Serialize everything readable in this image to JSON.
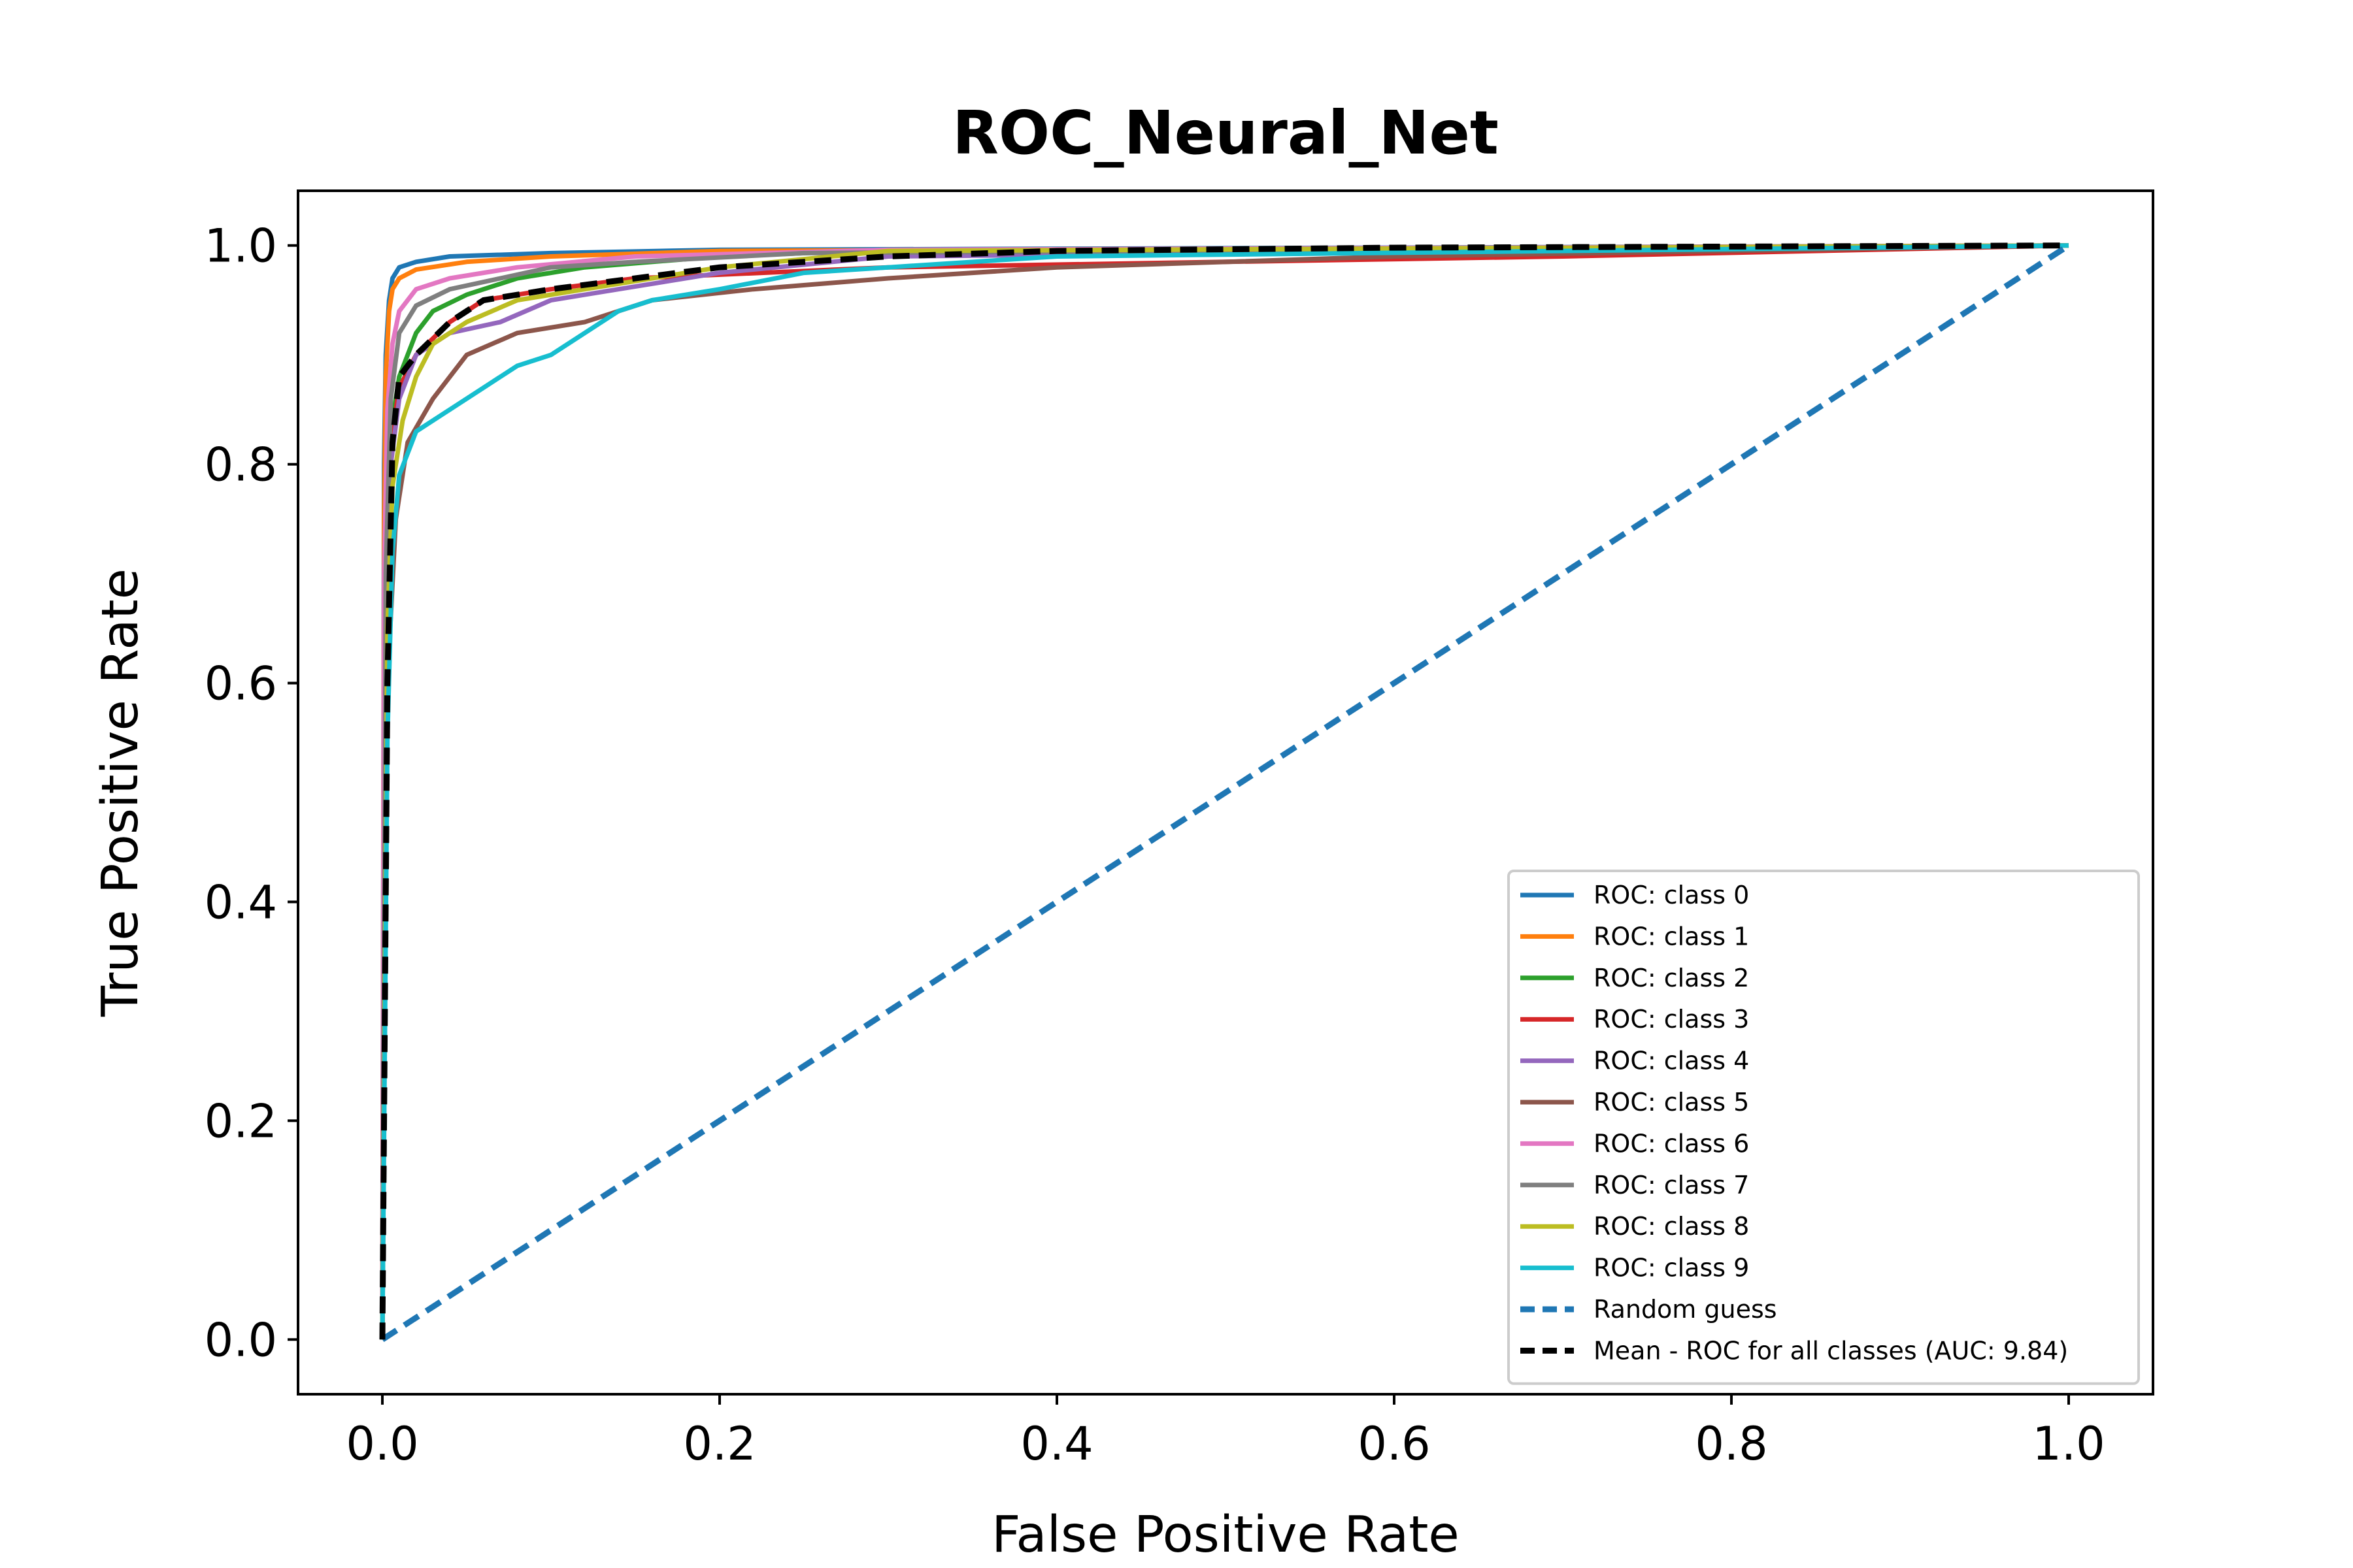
{
  "chart_data": {
    "type": "line",
    "title": "ROC_Neural_Net",
    "xlabel": "False Positive Rate",
    "ylabel": "True Positive Rate",
    "xlim": [
      -0.05,
      1.05
    ],
    "ylim": [
      -0.05,
      1.05
    ],
    "xticks": [
      {
        "value": 0.0,
        "label": "0.0"
      },
      {
        "value": 0.2,
        "label": "0.2"
      },
      {
        "value": 0.4,
        "label": "0.4"
      },
      {
        "value": 0.6,
        "label": "0.6"
      },
      {
        "value": 0.8,
        "label": "0.8"
      },
      {
        "value": 1.0,
        "label": "1.0"
      }
    ],
    "yticks": [
      {
        "value": 0.0,
        "label": "0.0"
      },
      {
        "value": 0.2,
        "label": "0.2"
      },
      {
        "value": 0.4,
        "label": "0.4"
      },
      {
        "value": 0.6,
        "label": "0.6"
      },
      {
        "value": 0.8,
        "label": "0.8"
      },
      {
        "value": 1.0,
        "label": "1.0"
      }
    ],
    "grid": false,
    "legend_position": "lower-right",
    "series": [
      {
        "name": "ROC: class 0",
        "color": "#1f77b4",
        "dash": "solid",
        "x": [
          0,
          0.001,
          0.002,
          0.004,
          0.006,
          0.01,
          0.02,
          0.04,
          0.1,
          0.2,
          1.0
        ],
        "y": [
          0,
          0.8,
          0.9,
          0.95,
          0.97,
          0.98,
          0.985,
          0.99,
          0.993,
          0.996,
          1.0
        ]
      },
      {
        "name": "ROC: class 1",
        "color": "#ff7f0e",
        "dash": "solid",
        "x": [
          0,
          0.001,
          0.002,
          0.004,
          0.006,
          0.01,
          0.02,
          0.05,
          0.1,
          0.2,
          1.0
        ],
        "y": [
          0,
          0.75,
          0.88,
          0.94,
          0.96,
          0.97,
          0.978,
          0.985,
          0.99,
          0.995,
          1.0
        ]
      },
      {
        "name": "ROC: class 2",
        "color": "#2ca02c",
        "dash": "solid",
        "x": [
          0,
          0.002,
          0.005,
          0.01,
          0.02,
          0.03,
          0.05,
          0.08,
          0.12,
          0.2,
          0.3,
          1.0
        ],
        "y": [
          0,
          0.7,
          0.83,
          0.88,
          0.92,
          0.94,
          0.955,
          0.97,
          0.98,
          0.99,
          0.996,
          1.0
        ]
      },
      {
        "name": "ROC: class 3",
        "color": "#d62728",
        "dash": "solid",
        "x": [
          0,
          0.002,
          0.005,
          0.01,
          0.02,
          0.04,
          0.06,
          0.1,
          0.15,
          0.3,
          0.5,
          0.7,
          1.0
        ],
        "y": [
          0,
          0.7,
          0.82,
          0.87,
          0.9,
          0.93,
          0.95,
          0.96,
          0.97,
          0.98,
          0.985,
          0.99,
          1.0
        ]
      },
      {
        "name": "ROC: class 4",
        "color": "#9467bd",
        "dash": "solid",
        "x": [
          0,
          0.002,
          0.005,
          0.01,
          0.02,
          0.04,
          0.07,
          0.1,
          0.14,
          0.2,
          0.3,
          1.0
        ],
        "y": [
          0,
          0.68,
          0.8,
          0.86,
          0.9,
          0.92,
          0.93,
          0.95,
          0.96,
          0.975,
          0.99,
          1.0
        ]
      },
      {
        "name": "ROC: class 5",
        "color": "#8c564b",
        "dash": "solid",
        "x": [
          0,
          0.003,
          0.008,
          0.015,
          0.03,
          0.05,
          0.08,
          0.12,
          0.16,
          0.22,
          0.3,
          0.4,
          0.6,
          1.0
        ],
        "y": [
          0,
          0.6,
          0.75,
          0.82,
          0.86,
          0.9,
          0.92,
          0.93,
          0.95,
          0.96,
          0.97,
          0.98,
          0.99,
          1.0
        ]
      },
      {
        "name": "ROC: class 6",
        "color": "#e377c2",
        "dash": "solid",
        "x": [
          0,
          0.001,
          0.003,
          0.006,
          0.01,
          0.02,
          0.04,
          0.08,
          0.15,
          0.3,
          1.0
        ],
        "y": [
          0,
          0.7,
          0.85,
          0.91,
          0.94,
          0.96,
          0.97,
          0.98,
          0.99,
          0.996,
          1.0
        ]
      },
      {
        "name": "ROC: class 7",
        "color": "#7f7f7f",
        "dash": "solid",
        "x": [
          0,
          0.002,
          0.005,
          0.01,
          0.02,
          0.04,
          0.07,
          0.1,
          0.15,
          0.25,
          1.0
        ],
        "y": [
          0,
          0.7,
          0.86,
          0.92,
          0.945,
          0.96,
          0.97,
          0.98,
          0.985,
          0.993,
          1.0
        ]
      },
      {
        "name": "ROC: class 8",
        "color": "#bcbd22",
        "dash": "solid",
        "x": [
          0,
          0.003,
          0.006,
          0.012,
          0.02,
          0.03,
          0.05,
          0.08,
          0.12,
          0.16,
          0.2,
          0.3,
          1.0
        ],
        "y": [
          0,
          0.65,
          0.78,
          0.84,
          0.88,
          0.91,
          0.93,
          0.95,
          0.96,
          0.97,
          0.98,
          0.995,
          1.0
        ]
      },
      {
        "name": "ROC: class 9",
        "color": "#17becf",
        "dash": "solid",
        "x": [
          0,
          0.003,
          0.006,
          0.01,
          0.02,
          0.04,
          0.06,
          0.08,
          0.1,
          0.12,
          0.14,
          0.16,
          0.2,
          0.25,
          0.3,
          0.4,
          1.0
        ],
        "y": [
          0,
          0.55,
          0.72,
          0.79,
          0.83,
          0.85,
          0.87,
          0.89,
          0.9,
          0.92,
          0.94,
          0.95,
          0.96,
          0.975,
          0.98,
          0.99,
          1.0
        ]
      },
      {
        "name": "Random guess",
        "color": "#1f77b4",
        "dash": "dashed",
        "x": [
          0,
          1.0
        ],
        "y": [
          0,
          1.0
        ]
      },
      {
        "name": "Mean - ROC for all classes (AUC: 9.84)",
        "color": "#000000",
        "dash": "dashed",
        "x": [
          0,
          0.003,
          0.006,
          0.01,
          0.02,
          0.04,
          0.06,
          0.1,
          0.15,
          0.2,
          0.3,
          0.4,
          0.6,
          1.0
        ],
        "y": [
          0,
          0.6,
          0.82,
          0.88,
          0.9,
          0.93,
          0.95,
          0.96,
          0.97,
          0.98,
          0.99,
          0.995,
          0.998,
          1.0
        ]
      }
    ]
  }
}
